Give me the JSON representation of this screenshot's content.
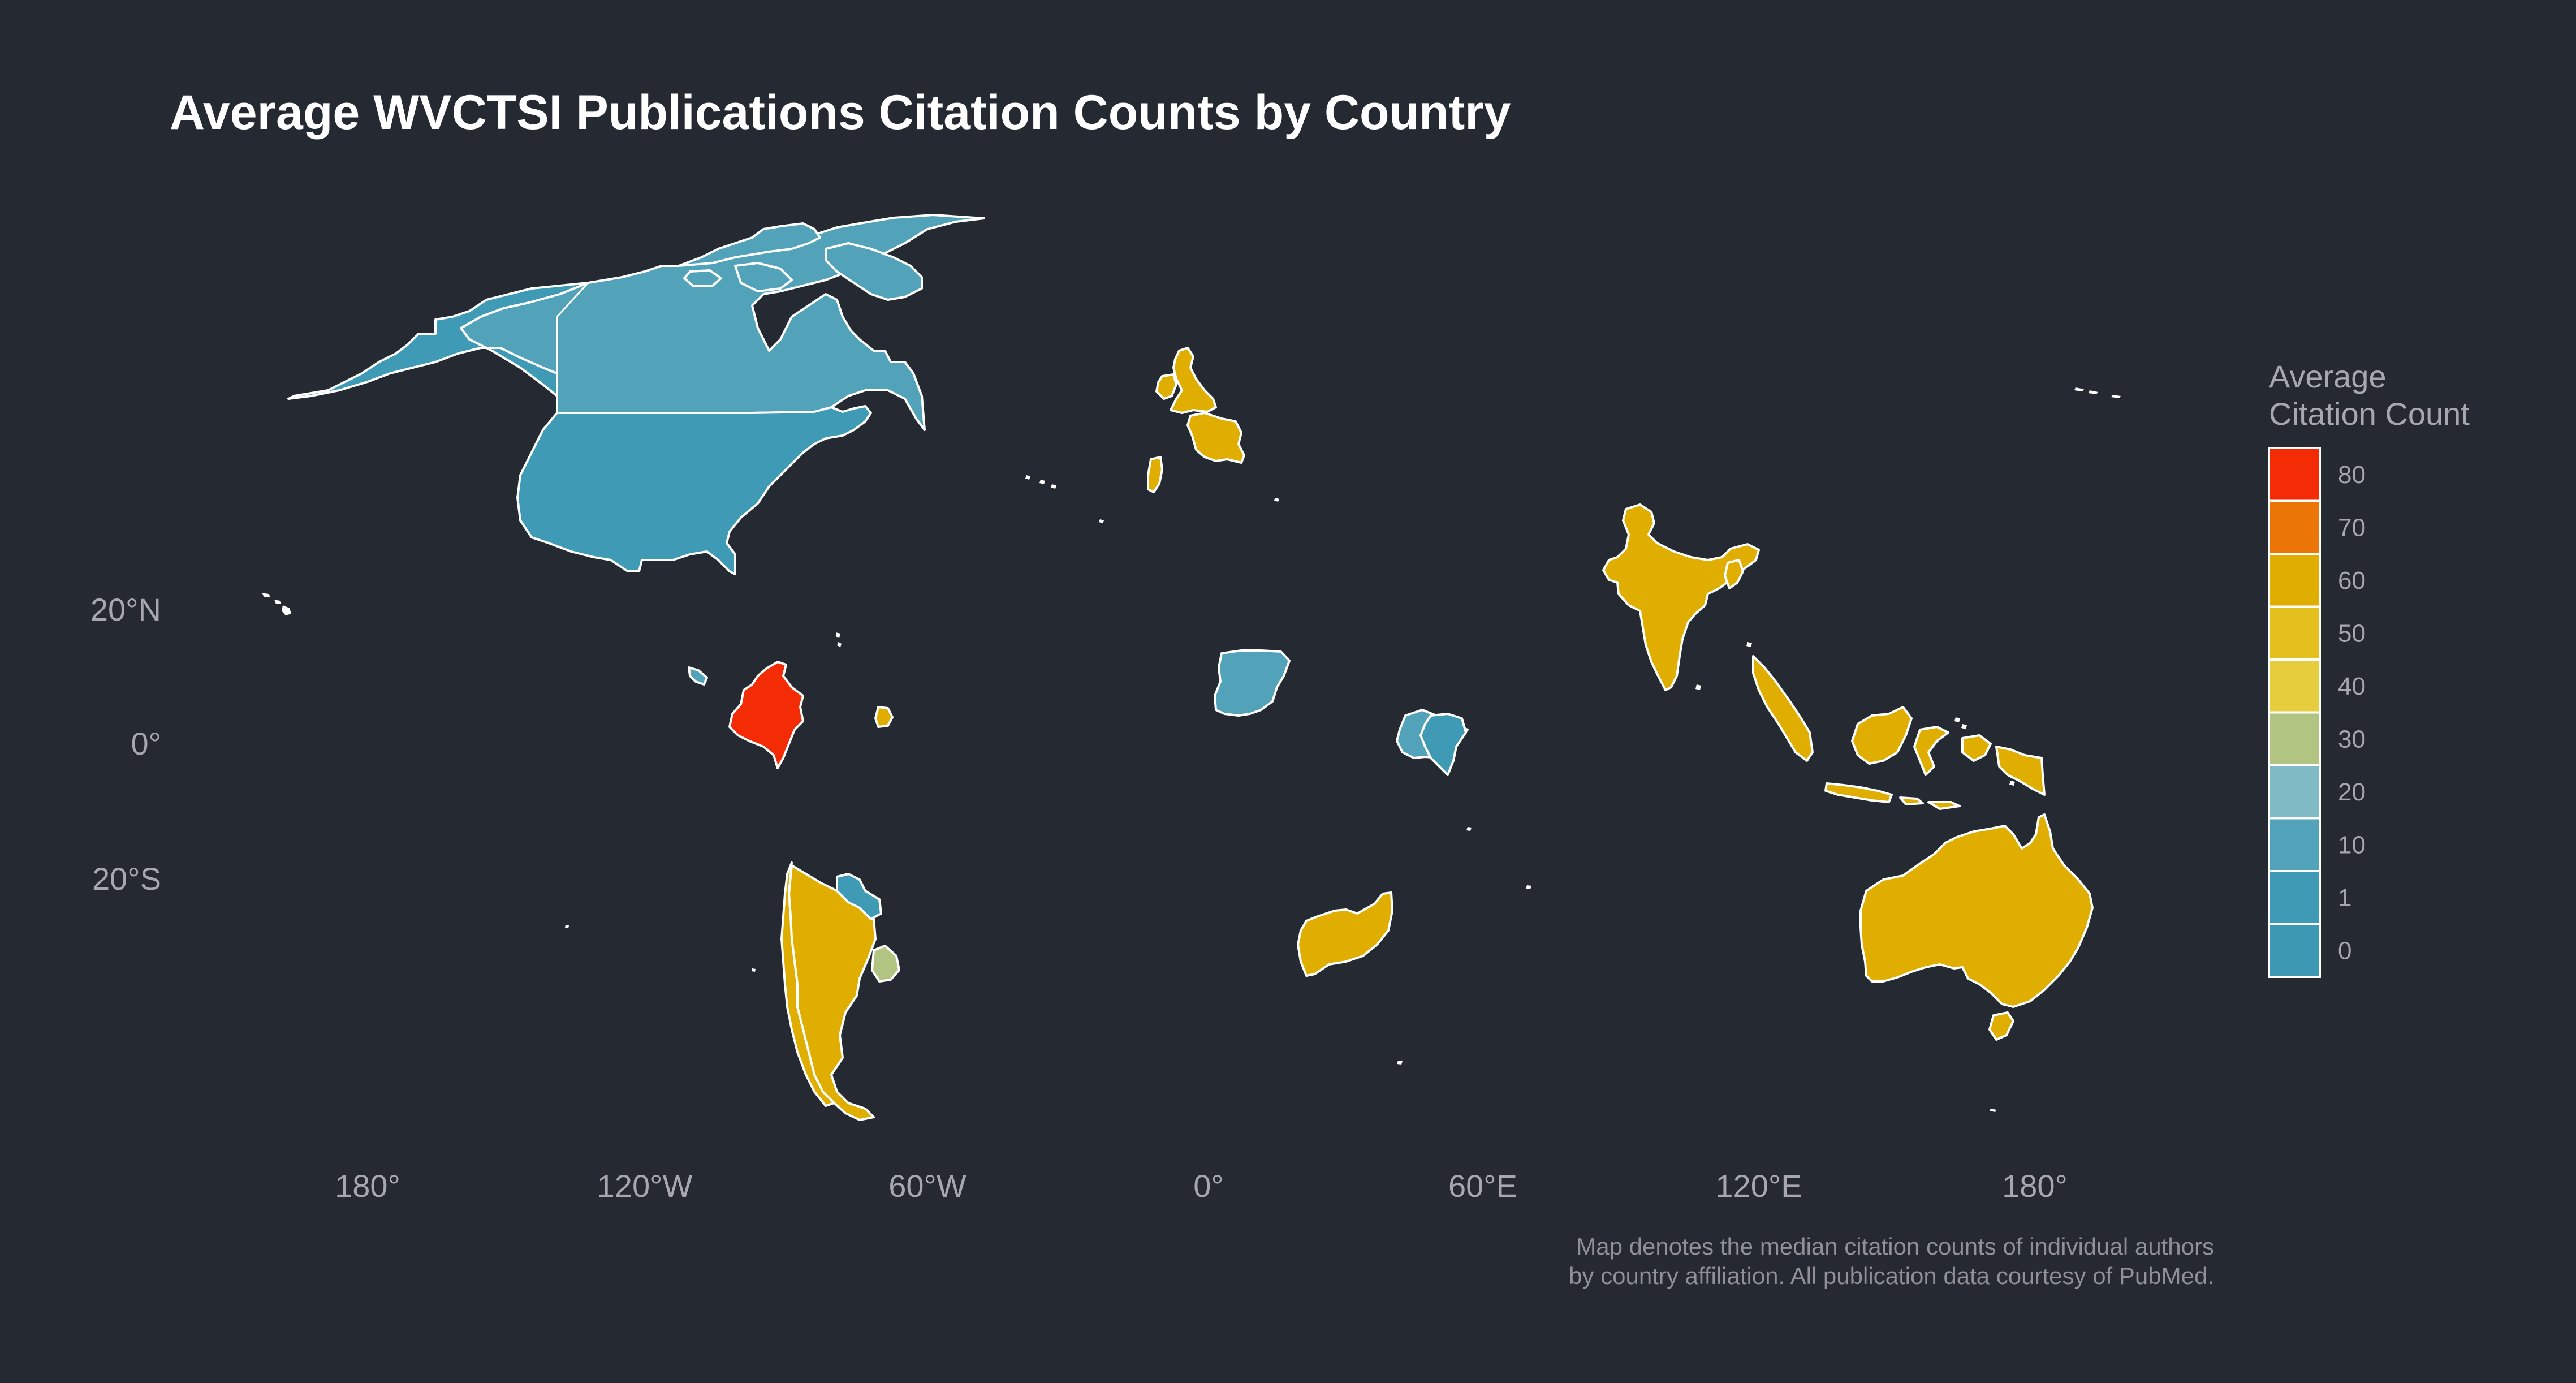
{
  "title": "Average WVCTSI Publications Citation Counts by Country",
  "legend": {
    "title_line1": "Average",
    "title_line2": "Citation Count",
    "ticks": [
      "80",
      "70",
      "60",
      "50",
      "40",
      "30",
      "20",
      "10",
      "1",
      "0"
    ],
    "colors": [
      "#f42c05",
      "#ec7508",
      "#e0ae00",
      "#e4c01e",
      "#e6cd3e",
      "#b2c482",
      "#7fbac5",
      "#52a3ba",
      "#3f9bb5",
      "#3d99b3"
    ]
  },
  "x_axis_labels": [
    "180°",
    "120°W",
    "60°W",
    "0°",
    "60°E",
    "120°E",
    "180°"
  ],
  "y_axis_labels": [
    "20°N",
    "0°",
    "20°S"
  ],
  "caption_line1": "Map denotes the median citation counts of individual authors",
  "caption_line2": "by country affiliation. All publication data courtesy of PubMed.",
  "map_data": {
    "type": "choropleth",
    "value_label": "Average Citation Count",
    "countries": [
      {
        "name": "Canada",
        "bin": "10"
      },
      {
        "name": "United States",
        "bin": "1"
      },
      {
        "name": "Colombia",
        "bin": "80"
      },
      {
        "name": "Trinidad and Tobago",
        "bin": "60"
      },
      {
        "name": "Argentina",
        "bin": "60"
      },
      {
        "name": "Chile",
        "bin": "60"
      },
      {
        "name": "Paraguay",
        "bin": "1"
      },
      {
        "name": "Uruguay",
        "bin": "30"
      },
      {
        "name": "United Kingdom",
        "bin": "60"
      },
      {
        "name": "Ireland",
        "bin": "60"
      },
      {
        "name": "France",
        "bin": "60"
      },
      {
        "name": "Portugal",
        "bin": "60"
      },
      {
        "name": "Nigeria",
        "bin": "10"
      },
      {
        "name": "Ethiopia",
        "bin": "10"
      },
      {
        "name": "Kenya",
        "bin": "1"
      },
      {
        "name": "South Africa",
        "bin": "60"
      },
      {
        "name": "India",
        "bin": "60"
      },
      {
        "name": "Bangladesh",
        "bin": "60"
      },
      {
        "name": "Indonesia",
        "bin": "60"
      },
      {
        "name": "Papua New Guinea",
        "bin": "60"
      },
      {
        "name": "Australia",
        "bin": "60"
      }
    ]
  }
}
